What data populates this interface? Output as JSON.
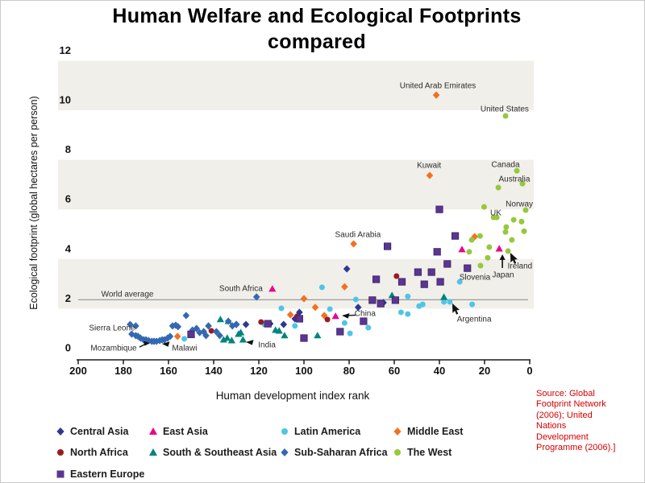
{
  "title": {
    "line1": "Human Welfare and Ecological Footprints",
    "line2": "compared"
  },
  "source_note": {
    "text": "Source: Global\nFootprint Network\n(2006); United\nNations\nDevelopment\nProgramme (2006).]",
    "color": "#d40000"
  },
  "legend": {
    "items": [
      {
        "label": "Central Asia",
        "marker": "diamond",
        "color": "#2b3990"
      },
      {
        "label": "East Asia",
        "marker": "triangle",
        "color": "#ec008c"
      },
      {
        "label": "Latin America",
        "marker": "circle",
        "color": "#4ec5e6"
      },
      {
        "label": "Middle East",
        "marker": "diamond",
        "color": "#f37021"
      },
      {
        "label": "North Africa",
        "marker": "circle",
        "color": "#9b1b1f"
      },
      {
        "label": "South & Southeast Asia",
        "marker": "triangle",
        "color": "#00847e"
      },
      {
        "label": "Sub-Saharan Africa",
        "marker": "diamond",
        "color": "#3468b2"
      },
      {
        "label": "The West",
        "marker": "circle",
        "color": "#95c93d"
      },
      {
        "label": "Eastern Europe",
        "marker": "square",
        "color": "#5b3592"
      }
    ]
  },
  "chart_data": {
    "type": "scatter",
    "title": "Human Welfare and Ecological Footprints compared",
    "xlabel": "Human development index rank",
    "ylabel": "Ecological footprint (global hectares per person)",
    "xlim": [
      200,
      0
    ],
    "ylim": [
      0,
      12
    ],
    "x_ticks": [
      200,
      180,
      160,
      140,
      120,
      100,
      80,
      60,
      40,
      20,
      0
    ],
    "y_ticks": [
      0,
      2,
      4,
      6,
      8,
      10,
      12
    ],
    "band_color": "#f1efe9",
    "gray_bands": [
      [
        10,
        12
      ],
      [
        6,
        8
      ],
      [
        2,
        4
      ]
    ],
    "reference_line": {
      "y": 2,
      "label": "World average"
    },
    "series": [
      {
        "name": "Central Asia",
        "marker": "diamond",
        "color": "#2b3990",
        "points": [
          [
            81,
            3.18
          ],
          [
            64.8,
            1.82
          ],
          [
            76,
            1.63
          ],
          [
            102,
            1.43
          ],
          [
            104,
            1.17
          ],
          [
            109,
            0.94
          ],
          [
            115,
            0.97
          ],
          [
            125.7,
            0.94
          ],
          [
            130,
            0.94
          ]
        ]
      },
      {
        "name": "East Asia",
        "marker": "triangle",
        "color": "#ec008c",
        "points": [
          [
            13.5,
            3.99
          ],
          [
            30,
            3.96
          ],
          [
            114,
            2.37
          ],
          [
            86,
            1.27
          ]
        ]
      },
      {
        "name": "Latin America",
        "marker": "circle",
        "color": "#4ec5e6",
        "points": [
          [
            31,
            2.66
          ],
          [
            92,
            2.44
          ],
          [
            54,
            2.07
          ],
          [
            77,
            1.95
          ],
          [
            38,
            1.85
          ],
          [
            35.4,
            1.85
          ],
          [
            47.4,
            1.75
          ],
          [
            25.5,
            1.75
          ],
          [
            49,
            1.68
          ],
          [
            110,
            1.59
          ],
          [
            88.5,
            1.56
          ],
          [
            57,
            1.43
          ],
          [
            54,
            1.36
          ],
          [
            104,
            0.88
          ],
          [
            82,
            1.0
          ],
          [
            79.6,
            0.58
          ],
          [
            71.5,
            0.81
          ],
          [
            117.5,
            0.94
          ],
          [
            153,
            0.36
          ]
        ]
      },
      {
        "name": "Middle East",
        "marker": "diamond",
        "color": "#f37021",
        "points": [
          [
            41.4,
            10.19
          ],
          [
            44.3,
            6.95
          ],
          [
            78,
            4.19
          ],
          [
            24.4,
            4.48
          ],
          [
            82,
            2.46
          ],
          [
            100,
            1.98
          ],
          [
            95,
            1.63
          ],
          [
            106,
            1.33
          ],
          [
            91,
            1.3
          ],
          [
            156,
            0.46
          ]
        ]
      },
      {
        "name": "North Africa",
        "marker": "circle",
        "color": "#9b1b1f",
        "points": [
          [
            59,
            2.89
          ],
          [
            89.6,
            1.14
          ],
          [
            103,
            1.27
          ],
          [
            119,
            1.04
          ],
          [
            141,
            0.68
          ]
        ]
      },
      {
        "name": "South & Southeast Asia",
        "marker": "triangle",
        "color": "#00847e",
        "points": [
          [
            137,
            1.14
          ],
          [
            135.6,
            0.32
          ],
          [
            134,
            0.39
          ],
          [
            132,
            0.29
          ],
          [
            129,
            0.55
          ],
          [
            128,
            0.61
          ],
          [
            127,
            0.32
          ],
          [
            112.6,
            0.71
          ],
          [
            111,
            0.68
          ],
          [
            108.6,
            0.49
          ],
          [
            94,
            0.49
          ],
          [
            61,
            2.11
          ],
          [
            38,
            2.04
          ],
          [
            133.5,
            1.07
          ]
        ]
      },
      {
        "name": "Sub-Saharan Africa",
        "marker": "diamond",
        "color": "#3468b2",
        "points": [
          [
            121,
            2.05
          ],
          [
            177,
            0.94
          ],
          [
            174.5,
            0.88
          ],
          [
            176.3,
            0.55
          ],
          [
            174.5,
            0.49
          ],
          [
            173.5,
            0.46
          ],
          [
            172.4,
            0.39
          ],
          [
            171,
            0.32
          ],
          [
            170,
            0.32
          ],
          [
            168.8,
            0.29
          ],
          [
            167.4,
            0.26
          ],
          [
            166.4,
            0.26
          ],
          [
            165.3,
            0.26
          ],
          [
            163.9,
            0.29
          ],
          [
            162.8,
            0.32
          ],
          [
            161.8,
            0.32
          ],
          [
            160.4,
            0.39
          ],
          [
            159.3,
            0.46
          ],
          [
            158.2,
            0.88
          ],
          [
            156.8,
            0.91
          ],
          [
            155.8,
            0.85
          ],
          [
            152.2,
            1.3
          ],
          [
            149.4,
            0.71
          ],
          [
            147.6,
            0.78
          ],
          [
            146.2,
            0.61
          ],
          [
            144.4,
            0.65
          ],
          [
            143.4,
            0.49
          ],
          [
            142.3,
            0.88
          ],
          [
            138.8,
            0.65
          ],
          [
            137.3,
            0.49
          ],
          [
            131.7,
            0.88
          ],
          [
            129.9,
            0.94
          ],
          [
            133.5,
            1.07
          ]
        ]
      },
      {
        "name": "The West",
        "marker": "circle",
        "color": "#95c93d",
        "points": [
          [
            10.7,
            9.35
          ],
          [
            5.7,
            7.14
          ],
          [
            3.2,
            6.62
          ],
          [
            13.9,
            6.46
          ],
          [
            1.8,
            5.55
          ],
          [
            20.2,
            5.68
          ],
          [
            16,
            5.26
          ],
          [
            14.6,
            5.26
          ],
          [
            7.1,
            5.16
          ],
          [
            3.6,
            5.09
          ],
          [
            10.4,
            4.87
          ],
          [
            2.5,
            4.7
          ],
          [
            10.7,
            4.67
          ],
          [
            22,
            4.51
          ],
          [
            25.7,
            4.35
          ],
          [
            7.9,
            4.35
          ],
          [
            17.9,
            4.06
          ],
          [
            26.8,
            3.87
          ],
          [
            9.6,
            3.9
          ],
          [
            18.6,
            3.63
          ],
          [
            21.8,
            3.31
          ]
        ]
      },
      {
        "name": "Eastern Europe",
        "marker": "square",
        "color": "#5b3592",
        "points": [
          [
            40,
            5.58
          ],
          [
            33,
            4.51
          ],
          [
            63,
            4.09
          ],
          [
            41,
            3.87
          ],
          [
            36.5,
            3.38
          ],
          [
            27.6,
            3.21
          ],
          [
            49.5,
            3.05
          ],
          [
            43.5,
            3.05
          ],
          [
            39.6,
            2.66
          ],
          [
            68,
            2.76
          ],
          [
            56.6,
            2.66
          ],
          [
            46.7,
            2.56
          ],
          [
            59.5,
            1.92
          ],
          [
            69.7,
            1.92
          ],
          [
            66,
            1.78
          ],
          [
            73.6,
            1.07
          ],
          [
            84,
            0.65
          ],
          [
            100,
            0.39
          ],
          [
            102,
            1.17
          ],
          [
            116,
            0.97
          ],
          [
            150,
            0.54
          ]
        ]
      }
    ],
    "annotations": [
      {
        "text": "United Arab Emirates",
        "x": 40.7,
        "y": 10.58
      },
      {
        "text": "United States",
        "x": 11.1,
        "y": 9.64
      },
      {
        "text": "Kuwait",
        "x": 44.6,
        "y": 7.37
      },
      {
        "text": "Canada",
        "x": 10.7,
        "y": 7.4
      },
      {
        "text": "Australia",
        "x": 6.8,
        "y": 6.82
      },
      {
        "text": "Norway",
        "x": 4.6,
        "y": 5.81
      },
      {
        "text": "UK",
        "x": 15,
        "y": 5.45
      },
      {
        "text": "Saudi Arabia",
        "x": 76.1,
        "y": 4.58
      },
      {
        "text": "South Africa",
        "x": 127.9,
        "y": 2.4
      },
      {
        "text": "World average",
        "x": 178.2,
        "y": 2.17
      },
      {
        "text": "Slovenia",
        "x": 24.3,
        "y": 2.86
      },
      {
        "text": "Japan",
        "x": 11.8,
        "y": 2.95,
        "arrow": {
          "type": "up",
          "tx": 12.1,
          "ty": 3.77
        }
      },
      {
        "text": "Ireland",
        "x": 4.3,
        "y": 3.31,
        "arrow": {
          "type": "cursor",
          "tx": 8.6,
          "ty": 3.83
        }
      },
      {
        "text": "Argentina",
        "x": 24.6,
        "y": 1.17,
        "arrow": {
          "type": "cursor",
          "tx": 34.3,
          "ty": 1.79
        }
      },
      {
        "text": "China",
        "x": 72.9,
        "y": 1.4,
        "arrow": {
          "type": "tri-tail",
          "tx": 83.2,
          "ty": 1.3
        }
      },
      {
        "text": "India",
        "x": 116.4,
        "y": 0.13,
        "arrow": {
          "type": "tri",
          "tx": 125.7,
          "ty": 0.23
        }
      },
      {
        "text": "Sierra Leone",
        "x": 185,
        "y": 0.81
      },
      {
        "text": "Mozambique",
        "x": 184.3,
        "y": 0.0,
        "arrow": {
          "type": "line-tri",
          "tx": 168.2,
          "ty": 0.19
        }
      },
      {
        "text": "Malawi",
        "x": 152.9,
        "y": 0.0,
        "arrow": {
          "type": "tri",
          "tx": 162.9,
          "ty": 0.16
        }
      }
    ]
  }
}
